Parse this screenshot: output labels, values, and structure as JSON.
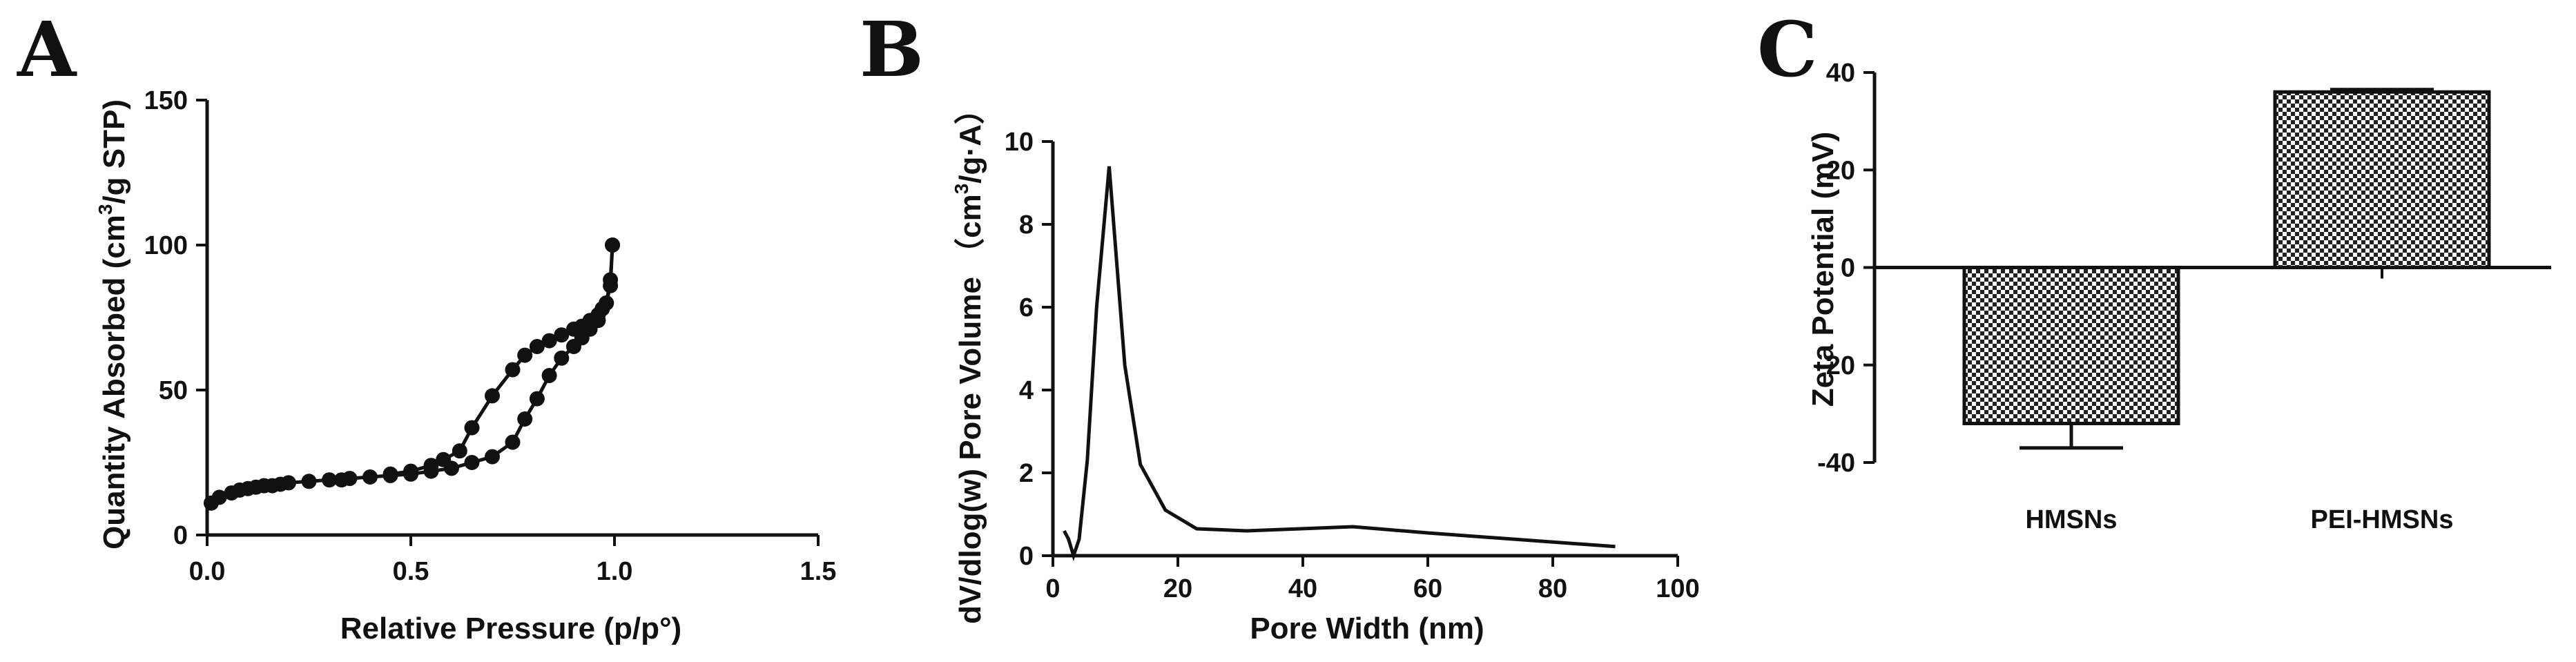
{
  "chart_data": [
    {
      "panel": "A",
      "type": "scatter",
      "xlabel": "Relative Pressure (p/p°)",
      "ylabel_main": "Quantity Absorbed (cm",
      "ylabel_sup": "3",
      "ylabel_tail": "/g STP)",
      "xlim": [
        0.0,
        1.5
      ],
      "ylim": [
        0,
        150
      ],
      "xticks": [
        "0.0",
        "0.5",
        "1.0",
        "1.5"
      ],
      "xtick_values": [
        0.0,
        0.5,
        1.0,
        1.5
      ],
      "yticks": [
        "0",
        "50",
        "100",
        "150"
      ],
      "ytick_values": [
        0,
        50,
        100,
        150
      ],
      "series": [
        {
          "x": [
            0.01,
            0.03,
            0.06,
            0.08,
            0.1,
            0.12,
            0.14,
            0.16,
            0.18,
            0.2,
            0.25,
            0.3,
            0.33,
            0.35,
            0.4,
            0.45,
            0.5,
            0.55,
            0.6,
            0.65,
            0.7,
            0.75,
            0.78,
            0.81,
            0.84,
            0.87,
            0.9,
            0.92,
            0.94,
            0.96,
            0.97,
            0.98,
            0.99,
            0.995
          ],
          "y": [
            11,
            13,
            14.5,
            15.5,
            16,
            16.5,
            17,
            17,
            17.5,
            18,
            18.5,
            19,
            19,
            19.5,
            20,
            20.5,
            21,
            22,
            23,
            25,
            27,
            32,
            40,
            47,
            55,
            61,
            65,
            68,
            71,
            74,
            78,
            80,
            88,
            100
          ]
        },
        {
          "x": [
            0.995,
            0.99,
            0.98,
            0.97,
            0.96,
            0.94,
            0.92,
            0.9,
            0.87,
            0.84,
            0.81,
            0.78,
            0.75,
            0.7,
            0.65,
            0.62,
            0.58,
            0.55,
            0.5,
            0.45
          ],
          "y": [
            100,
            86,
            80,
            78,
            76,
            74,
            72,
            71,
            69,
            67,
            65,
            62,
            57,
            48,
            37,
            29,
            26,
            24,
            22,
            21
          ]
        }
      ]
    },
    {
      "panel": "B",
      "type": "line",
      "xlabel": "Pore Width (nm)",
      "ylabel_main": "dV/dlog(w) Pore Volume （cm",
      "ylabel_sup": "3",
      "ylabel_tail": "/g·A）",
      "xlim": [
        0,
        100
      ],
      "ylim": [
        0,
        10
      ],
      "xticks": [
        "0",
        "20",
        "40",
        "60",
        "80",
        "100"
      ],
      "xtick_values": [
        0,
        20,
        40,
        60,
        80,
        100
      ],
      "yticks": [
        "0",
        "2",
        "4",
        "6",
        "8",
        "10"
      ],
      "ytick_values": [
        0,
        2,
        4,
        6,
        8,
        10
      ],
      "series": [
        {
          "x": [
            1.8,
            2.5,
            3.3,
            4.2,
            5.5,
            7.0,
            9.0,
            11.5,
            14.0,
            18.0,
            23.0,
            31.0,
            48.0,
            60.0,
            90.0
          ],
          "y": [
            0.6,
            0.4,
            0.0,
            0.4,
            2.3,
            6.0,
            9.4,
            4.6,
            2.2,
            1.1,
            0.65,
            0.6,
            0.7,
            0.55,
            0.22
          ]
        }
      ]
    },
    {
      "panel": "C",
      "type": "bar",
      "ylabel": "Zeta Potential (mV)",
      "categories": [
        "HMSNs",
        "PEI-HMSNs"
      ],
      "values": [
        -32,
        36
      ],
      "errors": [
        5,
        0.5
      ],
      "ylim": [
        -40,
        40
      ],
      "yticks": [
        "-40",
        "-20",
        "0",
        "20",
        "40"
      ],
      "ytick_values": [
        -40,
        -20,
        0,
        20,
        40
      ]
    }
  ]
}
